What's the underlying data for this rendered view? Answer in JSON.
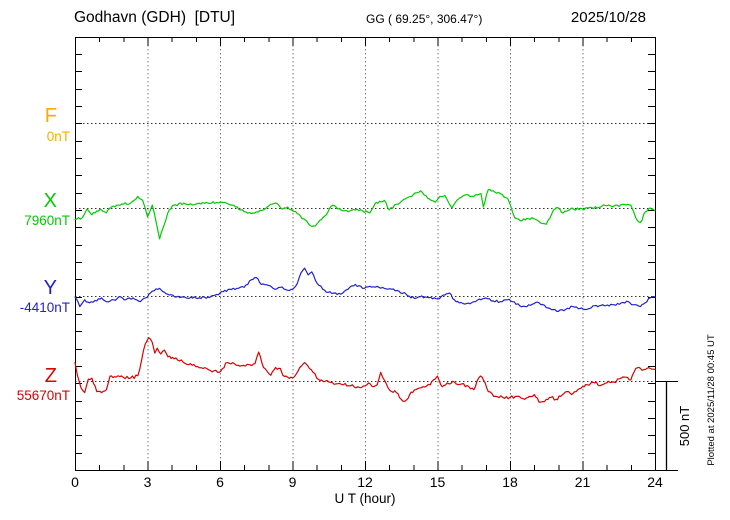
{
  "header": {
    "station_title": "Godhavn (GDH)  [DTU]",
    "coordinates": "GG ( 69.25°, 306.47°)",
    "date": "2025/10/28"
  },
  "footer": {
    "xaxis_label": "U T (hour)"
  },
  "right_margin": {
    "scale_bar_label": "500 nT",
    "plotted_at": "Plotted at 2025/11/28 00:45 UT"
  },
  "chart_data": {
    "type": "line",
    "title": "Godhavn (GDH) [DTU] magnetogram 2025/10/28",
    "xlabel": "U T (hour)",
    "x_range": [
      0,
      24
    ],
    "x_tick_labels": [
      "0",
      "3",
      "6",
      "9",
      "12",
      "15",
      "18",
      "21",
      "24"
    ],
    "x_major_tick_hours": 3,
    "x_minor_tick_hours": 1,
    "grid": "dotted vertical lines every 3 h; dotted horizontal line at each component baseline",
    "scale_bar": {
      "label": "500 nT",
      "nT": 500,
      "nT_per_axis_tick": 100
    },
    "series": [
      {
        "name": "F",
        "color": "#ffaa00",
        "baseline_label": "0nT",
        "baseline_nT": 0,
        "points": []
      },
      {
        "name": "X",
        "color": "#00cc00",
        "baseline_label": "7960nT",
        "baseline_nT": 7960,
        "points": [
          [
            0,
            7893
          ],
          [
            0.3,
            7904
          ],
          [
            0.5,
            7954
          ],
          [
            0.7,
            7921
          ],
          [
            0.9,
            7943
          ],
          [
            1.1,
            7949
          ],
          [
            1.3,
            7932
          ],
          [
            1.5,
            7966
          ],
          [
            1.8,
            7977
          ],
          [
            2,
            7982
          ],
          [
            2.3,
            7988
          ],
          [
            2.6,
            8027
          ],
          [
            2.8,
            8004
          ],
          [
            3,
            7910
          ],
          [
            3.2,
            7977
          ],
          [
            3.35,
            7882
          ],
          [
            3.5,
            7782
          ],
          [
            3.7,
            7866
          ],
          [
            3.9,
            7949
          ],
          [
            4.1,
            7977
          ],
          [
            4.5,
            7988
          ],
          [
            5,
            7982
          ],
          [
            5.5,
            7988
          ],
          [
            6,
            7993
          ],
          [
            6.5,
            7977
          ],
          [
            7,
            7938
          ],
          [
            7.3,
            7927
          ],
          [
            7.5,
            7938
          ],
          [
            7.8,
            7949
          ],
          [
            8.1,
            7982
          ],
          [
            8.3,
            7988
          ],
          [
            8.6,
            7954
          ],
          [
            8.8,
            7966
          ],
          [
            9,
            7943
          ],
          [
            9.2,
            7927
          ],
          [
            9.4,
            7899
          ],
          [
            9.6,
            7882
          ],
          [
            9.8,
            7854
          ],
          [
            10,
            7866
          ],
          [
            10.2,
            7893
          ],
          [
            10.4,
            7921
          ],
          [
            10.6,
            7971
          ],
          [
            10.8,
            7966
          ],
          [
            11,
            7949
          ],
          [
            11.3,
            7938
          ],
          [
            11.6,
            7949
          ],
          [
            11.9,
            7943
          ],
          [
            12.2,
            7932
          ],
          [
            12.4,
            7982
          ],
          [
            12.6,
            7999
          ],
          [
            12.8,
            8004
          ],
          [
            13,
            7949
          ],
          [
            13.3,
            7982
          ],
          [
            13.6,
            8010
          ],
          [
            14,
            8038
          ],
          [
            14.3,
            8060
          ],
          [
            14.6,
            8016
          ],
          [
            14.9,
            7993
          ],
          [
            15.1,
            8027
          ],
          [
            15.3,
            8032
          ],
          [
            15.6,
            7960
          ],
          [
            15.9,
            8016
          ],
          [
            16.2,
            8038
          ],
          [
            16.5,
            8027
          ],
          [
            16.8,
            8043
          ],
          [
            16.9,
            7966
          ],
          [
            17.1,
            8066
          ],
          [
            17.3,
            8060
          ],
          [
            17.6,
            8043
          ],
          [
            17.9,
            8016
          ],
          [
            18.2,
            7904
          ],
          [
            18.5,
            7888
          ],
          [
            18.9,
            7904
          ],
          [
            19.2,
            7882
          ],
          [
            19.5,
            7866
          ],
          [
            19.8,
            7949
          ],
          [
            20,
            7960
          ],
          [
            20.2,
            7932
          ],
          [
            20.5,
            7954
          ],
          [
            21,
            7954
          ],
          [
            21.4,
            7960
          ],
          [
            21.8,
            7971
          ],
          [
            22.3,
            7971
          ],
          [
            22.8,
            7977
          ],
          [
            23,
            7977
          ],
          [
            23.2,
            7904
          ],
          [
            23.4,
            7877
          ],
          [
            23.6,
            7938
          ],
          [
            23.8,
            7960
          ],
          [
            24,
            7943
          ]
        ]
      },
      {
        "name": "Y",
        "color": "#2222cc",
        "baseline_label": "-4410nT",
        "baseline_nT": -4410,
        "points": [
          [
            0,
            -4416
          ],
          [
            0.2,
            -4471
          ],
          [
            0.4,
            -4432
          ],
          [
            0.6,
            -4449
          ],
          [
            0.9,
            -4438
          ],
          [
            1.1,
            -4421
          ],
          [
            1.3,
            -4443
          ],
          [
            1.6,
            -4432
          ],
          [
            1.9,
            -4416
          ],
          [
            2.1,
            -4432
          ],
          [
            2.4,
            -4421
          ],
          [
            2.7,
            -4443
          ],
          [
            3,
            -4416
          ],
          [
            3.2,
            -4382
          ],
          [
            3.5,
            -4366
          ],
          [
            3.7,
            -4388
          ],
          [
            3.9,
            -4404
          ],
          [
            4.2,
            -4416
          ],
          [
            4.6,
            -4421
          ],
          [
            5,
            -4421
          ],
          [
            5.5,
            -4416
          ],
          [
            6,
            -4393
          ],
          [
            6.4,
            -4371
          ],
          [
            6.7,
            -4366
          ],
          [
            7,
            -4360
          ],
          [
            7.3,
            -4316
          ],
          [
            7.5,
            -4304
          ],
          [
            7.7,
            -4343
          ],
          [
            8,
            -4349
          ],
          [
            8.2,
            -4366
          ],
          [
            8.5,
            -4360
          ],
          [
            8.8,
            -4377
          ],
          [
            9,
            -4371
          ],
          [
            9.2,
            -4338
          ],
          [
            9.35,
            -4277
          ],
          [
            9.5,
            -4249
          ],
          [
            9.65,
            -4288
          ],
          [
            9.8,
            -4271
          ],
          [
            9.95,
            -4321
          ],
          [
            10.1,
            -4349
          ],
          [
            10.4,
            -4388
          ],
          [
            10.7,
            -4393
          ],
          [
            11,
            -4399
          ],
          [
            11.3,
            -4371
          ],
          [
            11.6,
            -4343
          ],
          [
            11.9,
            -4366
          ],
          [
            12.2,
            -4354
          ],
          [
            12.5,
            -4354
          ],
          [
            12.8,
            -4366
          ],
          [
            13.1,
            -4371
          ],
          [
            13.4,
            -4382
          ],
          [
            13.7,
            -4399
          ],
          [
            13.9,
            -4421
          ],
          [
            14.2,
            -4416
          ],
          [
            14.5,
            -4416
          ],
          [
            14.8,
            -4427
          ],
          [
            15,
            -4427
          ],
          [
            15.3,
            -4404
          ],
          [
            15.5,
            -4393
          ],
          [
            15.7,
            -4432
          ],
          [
            15.9,
            -4449
          ],
          [
            16.2,
            -4454
          ],
          [
            16.5,
            -4443
          ],
          [
            16.8,
            -4432
          ],
          [
            17,
            -4421
          ],
          [
            17.3,
            -4438
          ],
          [
            17.6,
            -4443
          ],
          [
            17.9,
            -4432
          ],
          [
            18.1,
            -4443
          ],
          [
            18.4,
            -4466
          ],
          [
            18.7,
            -4471
          ],
          [
            19,
            -4454
          ],
          [
            19.2,
            -4449
          ],
          [
            19.5,
            -4477
          ],
          [
            19.8,
            -4488
          ],
          [
            20,
            -4499
          ],
          [
            20.3,
            -4488
          ],
          [
            20.6,
            -4471
          ],
          [
            20.9,
            -4482
          ],
          [
            21.1,
            -4488
          ],
          [
            21.5,
            -4466
          ],
          [
            21.9,
            -4466
          ],
          [
            22.3,
            -4460
          ],
          [
            22.6,
            -4449
          ],
          [
            22.9,
            -4443
          ],
          [
            23.1,
            -4460
          ],
          [
            23.4,
            -4471
          ],
          [
            23.6,
            -4449
          ],
          [
            23.8,
            -4421
          ],
          [
            24,
            -4416
          ]
        ]
      },
      {
        "name": "Z",
        "color": "#dd0000",
        "baseline_label": "55670nT",
        "baseline_nT": 55670,
        "points": [
          [
            0,
            55776
          ],
          [
            0.1,
            55703
          ],
          [
            0.25,
            55631
          ],
          [
            0.4,
            55603
          ],
          [
            0.55,
            55681
          ],
          [
            0.7,
            55687
          ],
          [
            0.9,
            55609
          ],
          [
            1.1,
            55603
          ],
          [
            1.3,
            55620
          ],
          [
            1.45,
            55698
          ],
          [
            1.7,
            55692
          ],
          [
            2,
            55692
          ],
          [
            2.3,
            55687
          ],
          [
            2.6,
            55700
          ],
          [
            2.75,
            55787
          ],
          [
            2.9,
            55881
          ],
          [
            3.05,
            55920
          ],
          [
            3.2,
            55892
          ],
          [
            3.3,
            55831
          ],
          [
            3.4,
            55859
          ],
          [
            3.55,
            55826
          ],
          [
            3.7,
            55848
          ],
          [
            3.85,
            55809
          ],
          [
            4.1,
            55798
          ],
          [
            4.4,
            55792
          ],
          [
            4.7,
            55764
          ],
          [
            5,
            55753
          ],
          [
            5.3,
            55742
          ],
          [
            5.6,
            55731
          ],
          [
            5.9,
            55720
          ],
          [
            6.1,
            55742
          ],
          [
            6.3,
            55776
          ],
          [
            6.6,
            55770
          ],
          [
            6.9,
            55759
          ],
          [
            7.2,
            55764
          ],
          [
            7.45,
            55770
          ],
          [
            7.6,
            55837
          ],
          [
            7.8,
            55748
          ],
          [
            7.95,
            55726
          ],
          [
            8.1,
            55703
          ],
          [
            8.3,
            55748
          ],
          [
            8.5,
            55742
          ],
          [
            8.6,
            55703
          ],
          [
            8.8,
            55692
          ],
          [
            9,
            55687
          ],
          [
            9.15,
            55709
          ],
          [
            9.3,
            55748
          ],
          [
            9.5,
            55776
          ],
          [
            9.7,
            55742
          ],
          [
            9.85,
            55720
          ],
          [
            10,
            55687
          ],
          [
            10.2,
            55676
          ],
          [
            10.5,
            55664
          ],
          [
            10.8,
            55653
          ],
          [
            11.1,
            55648
          ],
          [
            11.4,
            55642
          ],
          [
            11.7,
            55637
          ],
          [
            12,
            55642
          ],
          [
            12.15,
            55659
          ],
          [
            12.3,
            55637
          ],
          [
            12.5,
            55648
          ],
          [
            12.65,
            55720
          ],
          [
            12.8,
            55676
          ],
          [
            12.95,
            55631
          ],
          [
            13.1,
            55609
          ],
          [
            13.3,
            55603
          ],
          [
            13.5,
            55564
          ],
          [
            13.65,
            55553
          ],
          [
            13.85,
            55592
          ],
          [
            14.1,
            55620
          ],
          [
            14.4,
            55637
          ],
          [
            14.7,
            55648
          ],
          [
            14.9,
            55681
          ],
          [
            15,
            55698
          ],
          [
            15.2,
            55637
          ],
          [
            15.4,
            55659
          ],
          [
            15.7,
            55664
          ],
          [
            16,
            55653
          ],
          [
            16.3,
            55637
          ],
          [
            16.5,
            55620
          ],
          [
            16.7,
            55687
          ],
          [
            16.85,
            55692
          ],
          [
            17.1,
            55609
          ],
          [
            17.4,
            55581
          ],
          [
            17.7,
            55576
          ],
          [
            18,
            55576
          ],
          [
            18.3,
            55581
          ],
          [
            18.6,
            55564
          ],
          [
            18.8,
            55581
          ],
          [
            19,
            55592
          ],
          [
            19.2,
            55548
          ],
          [
            19.5,
            55564
          ],
          [
            19.7,
            55576
          ],
          [
            19.9,
            55564
          ],
          [
            20.1,
            55581
          ],
          [
            20.35,
            55609
          ],
          [
            20.55,
            55592
          ],
          [
            20.8,
            55620
          ],
          [
            21,
            55637
          ],
          [
            21.2,
            55648
          ],
          [
            21.5,
            55659
          ],
          [
            21.8,
            55648
          ],
          [
            22,
            55659
          ],
          [
            22.3,
            55664
          ],
          [
            22.6,
            55687
          ],
          [
            22.8,
            55692
          ],
          [
            23,
            55676
          ],
          [
            23.2,
            55742
          ],
          [
            23.4,
            55742
          ],
          [
            23.6,
            55737
          ],
          [
            23.8,
            55742
          ],
          [
            24,
            55737
          ]
        ]
      }
    ]
  }
}
